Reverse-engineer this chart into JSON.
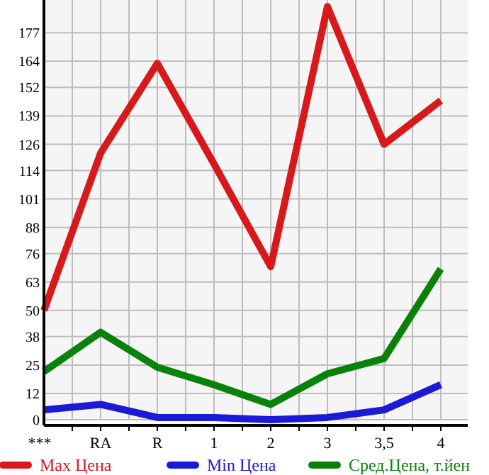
{
  "chart_data": {
    "type": "line",
    "categories": [
      "***",
      "RA",
      "R",
      "1",
      "2",
      "3",
      "3,5",
      "4"
    ],
    "series": [
      {
        "name": "Max Цена",
        "color": "#d7191c",
        "values": [
          50,
          122,
          163,
          117,
          70,
          189,
          126,
          146
        ]
      },
      {
        "name": "Min Цена",
        "color": "#1a1ad7",
        "values": [
          4.5,
          7,
          1,
          1,
          0,
          1,
          4.5,
          16
        ]
      },
      {
        "name": "Сред.Цена, т.йен",
        "color": "#0a820a",
        "values": [
          22,
          40,
          24,
          16,
          7,
          21,
          28,
          69
        ]
      }
    ],
    "ylim": [
      0,
      192
    ],
    "yticks": [
      0,
      12,
      25,
      38,
      50,
      63,
      76,
      88,
      101,
      114,
      126,
      139,
      152,
      164,
      177
    ],
    "grid": true,
    "legend": "bottom",
    "marker": "none",
    "line_style": "solid"
  }
}
